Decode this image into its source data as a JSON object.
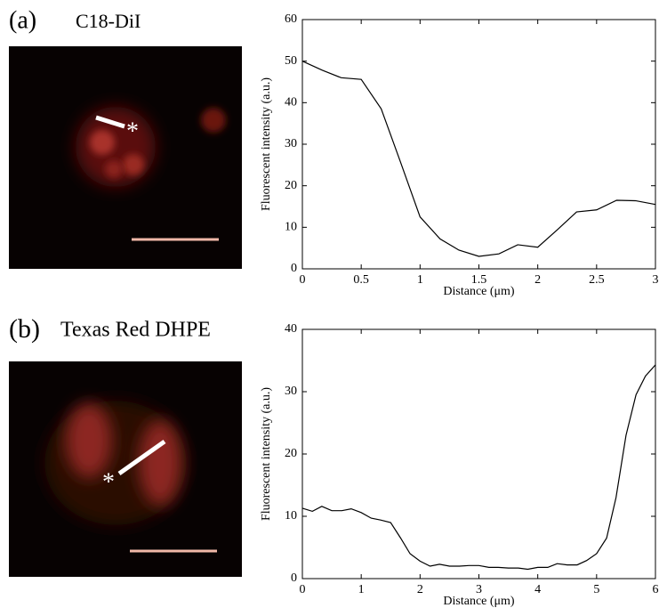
{
  "chart_data": [
    {
      "type": "line",
      "panel_label": "(a)",
      "title": "C18-DiI",
      "image_marker": "*",
      "xlabel": "Distance (μm)",
      "ylabel": "Fluorescent intensity (a.u.)",
      "color": "#000000",
      "x": [
        0,
        0.17,
        0.33,
        0.5,
        0.67,
        0.83,
        1.0,
        1.17,
        1.33,
        1.5,
        1.67,
        1.83,
        2.0,
        2.17,
        2.33,
        2.5,
        2.67,
        2.83,
        3.0
      ],
      "values": [
        50,
        47.8,
        46,
        45.6,
        38.5,
        26,
        12.5,
        7.2,
        4.5,
        3,
        3.6,
        5.8,
        5.2,
        9.5,
        13.7,
        14.2,
        16.5,
        16.4,
        15.5
      ],
      "xlim": [
        0,
        3
      ],
      "xticks": [
        0,
        0.5,
        1,
        1.5,
        2,
        2.5,
        3
      ],
      "ylim": [
        0,
        60
      ],
      "yticks": [
        0,
        10,
        20,
        30,
        40,
        50,
        60
      ]
    },
    {
      "type": "line",
      "panel_label": "(b)",
      "title": "Texas Red DHPE",
      "image_marker": "*",
      "xlabel": "Distance (μm)",
      "ylabel": "Fluorescent intensity (a.u.)",
      "color": "#000000",
      "x": [
        0,
        0.17,
        0.33,
        0.5,
        0.67,
        0.83,
        1.0,
        1.17,
        1.33,
        1.5,
        1.67,
        1.83,
        2.0,
        2.17,
        2.33,
        2.5,
        2.67,
        2.83,
        3.0,
        3.17,
        3.33,
        3.5,
        3.67,
        3.83,
        4.0,
        4.17,
        4.33,
        4.5,
        4.67,
        4.83,
        5.0,
        5.17,
        5.33,
        5.5,
        5.67,
        5.83,
        6.0
      ],
      "values": [
        11.3,
        10.8,
        11.6,
        10.9,
        10.9,
        11.2,
        10.6,
        9.7,
        9.4,
        9,
        6.5,
        4,
        2.8,
        2,
        2.3,
        2,
        2,
        2.1,
        2.1,
        1.8,
        1.8,
        1.7,
        1.7,
        1.5,
        1.8,
        1.8,
        2.4,
        2.2,
        2.2,
        2.9,
        4,
        6.5,
        13,
        23,
        29.5,
        32.5,
        34.3
      ],
      "xlim": [
        0,
        6
      ],
      "xticks": [
        0,
        1,
        2,
        3,
        4,
        5,
        6
      ],
      "ylim": [
        0,
        40
      ],
      "yticks": [
        0,
        10,
        20,
        30,
        40
      ]
    }
  ]
}
